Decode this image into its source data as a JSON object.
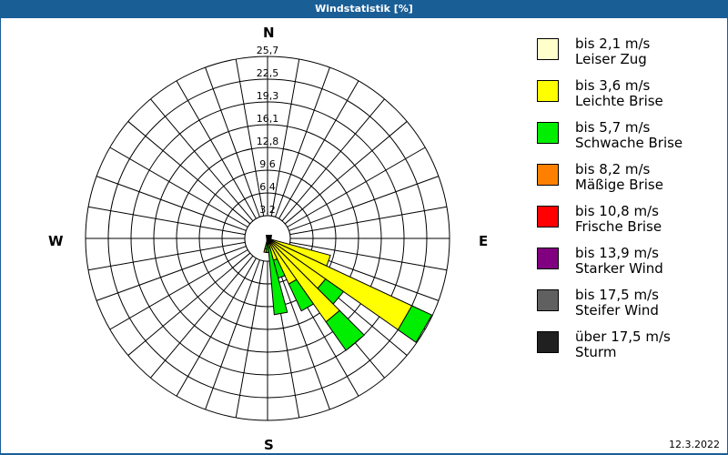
{
  "window": {
    "title": "Windstatistik [%]",
    "date": "12.3.2022"
  },
  "directions": {
    "north": "N",
    "east": "E",
    "south": "S",
    "west": "W"
  },
  "legend": [
    {
      "range": "bis 2,1 m/s",
      "name": "Leiser Zug",
      "color": "#ffffcc"
    },
    {
      "range": "bis 3,6 m/s",
      "name": "Leichte Brise",
      "color": "#ffff00"
    },
    {
      "range": "bis 5,7 m/s",
      "name": "Schwache Brise",
      "color": "#00ee00"
    },
    {
      "range": "bis 8,2 m/s",
      "name": "Mäßige Brise",
      "color": "#ff8000"
    },
    {
      "range": "bis 10,8 m/s",
      "name": "Frische Brise",
      "color": "#ff0000"
    },
    {
      "range": "bis 13,9 m/s",
      "name": "Starker Wind",
      "color": "#800080"
    },
    {
      "range": "bis 17,5 m/s",
      "name": "Steifer Wind",
      "color": "#606060"
    },
    {
      "range": "über 17,5 m/s",
      "name": "Sturm",
      "color": "#202020"
    }
  ],
  "chart_data": {
    "type": "wind-rose",
    "title": "Windstatistik [%]",
    "unit": "%",
    "radial_ticks": [
      "3,2",
      "6,4",
      "9,6",
      "12,8",
      "16,1",
      "19,3",
      "22,5",
      "25,7"
    ],
    "radial_max": 25.7,
    "sector_step_deg": 10,
    "series_names": [
      "Leiser Zug",
      "Leichte Brise",
      "Schwache Brise",
      "Mäßige Brise",
      "Frische Brise",
      "Starker Wind",
      "Steifer Wind",
      "Sturm"
    ],
    "bars": [
      {
        "direction_deg": 110,
        "cumulative": {
          "Leiser Zug": 0.3,
          "Leichte Brise": 9.2
        }
      },
      {
        "direction_deg": 120,
        "cumulative": {
          "Leiser Zug": 0.3,
          "Leichte Brise": 22.5,
          "Schwache Brise": 25.6
        }
      },
      {
        "direction_deg": 130,
        "cumulative": {
          "Leiser Zug": 0.3,
          "Leichte Brise": 10.0,
          "Schwache Brise": 13.1
        }
      },
      {
        "direction_deg": 140,
        "cumulative": {
          "Leiser Zug": 0.3,
          "Leichte Brise": 14.4,
          "Schwache Brise": 19.3
        }
      },
      {
        "direction_deg": 150,
        "cumulative": {
          "Leiser Zug": 0.3,
          "Leichte Brise": 7.1,
          "Schwache Brise": 11.3
        }
      },
      {
        "direction_deg": 160,
        "cumulative": {
          "Leiser Zug": 0.3,
          "Leichte Brise": 3.2,
          "Schwache Brise": 5.8
        }
      },
      {
        "direction_deg": 170,
        "cumulative": {
          "Leiser Zug": 0.3,
          "Leichte Brise": 1.3,
          "Schwache Brise": 10.8
        }
      },
      {
        "direction_deg": 180,
        "cumulative": {
          "Leiser Zug": 0.3,
          "Leichte Brise": 0.8,
          "Schwache Brise": 2.0
        }
      },
      {
        "direction_deg": 190,
        "cumulative": {
          "Leiser Zug": 0.3,
          "Leichte Brise": 0.8,
          "Schwache Brise": 1.5,
          "Mäßige Brise": 2.0
        }
      }
    ]
  }
}
